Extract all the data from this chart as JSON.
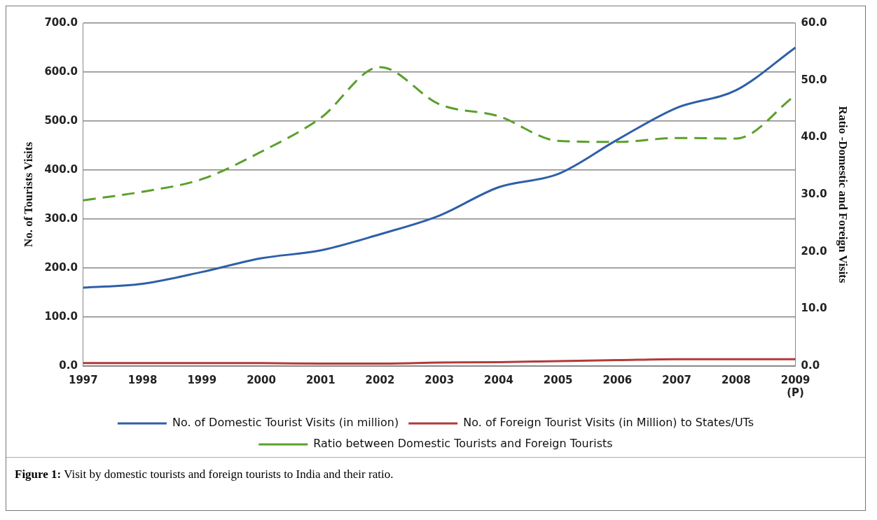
{
  "chart_data": {
    "type": "line",
    "ylabel": "No. of Tourists Visits",
    "y2label": "Ratio -Domestic and Foreign Visits",
    "categories": [
      "1997",
      "1998",
      "1999",
      "2000",
      "2001",
      "2002",
      "2003",
      "2004",
      "2005",
      "2006",
      "2007",
      "2008",
      "2009\n(P)"
    ],
    "series": [
      {
        "name": "No. of Domestic Tourist Visits (in million)",
        "color": "#2e5fa8",
        "values": [
          160,
          168,
          192,
          220,
          236,
          269,
          307,
          365,
          392,
          462,
          527,
          563,
          650
        ]
      },
      {
        "name": "No. of Foreign Tourist Visits (in Million) to States/UTs",
        "color": "#b33a3a",
        "values": [
          6,
          6,
          6,
          6,
          5,
          5,
          7,
          8,
          10,
          12,
          14,
          14,
          14
        ]
      },
      {
        "name": "Ratio between Domestic Tourists and Foreign Tourists",
        "color": "#5aa02c",
        "axis": "y2",
        "line_style": "dashed",
        "values": [
          29.0,
          30.5,
          32.7,
          37.5,
          43.4,
          52.3,
          45.8,
          43.7,
          39.4,
          39.2,
          39.9,
          39.8,
          47.4
        ]
      }
    ],
    "ylim": [
      0,
      700
    ],
    "yticks": [
      {
        "value": 0,
        "label": "0.0"
      },
      {
        "value": 100,
        "label": "100.0"
      },
      {
        "value": 200,
        "label": "200.0"
      },
      {
        "value": 300,
        "label": "300.0"
      },
      {
        "value": 400,
        "label": "400.0"
      },
      {
        "value": 500,
        "label": "500.0"
      },
      {
        "value": 600,
        "label": "600.0"
      },
      {
        "value": 700,
        "label": "700.0"
      }
    ],
    "y2lim": [
      0,
      60
    ],
    "y2ticks": [
      {
        "value": 0,
        "label": "0.0"
      },
      {
        "value": 10,
        "label": "10.0"
      },
      {
        "value": 20,
        "label": "20.0"
      },
      {
        "value": 30,
        "label": "30.0"
      },
      {
        "value": 40,
        "label": "40.0"
      },
      {
        "value": 50,
        "label": "50.0"
      },
      {
        "value": 60,
        "label": "60.0"
      }
    ],
    "grid": "y",
    "legend": "bottom",
    "marker": "none",
    "line_style": "solid",
    "annotations": [
      "Figure 1: Visit by domestic tourists and foreign tourists to India and their ratio."
    ]
  }
}
